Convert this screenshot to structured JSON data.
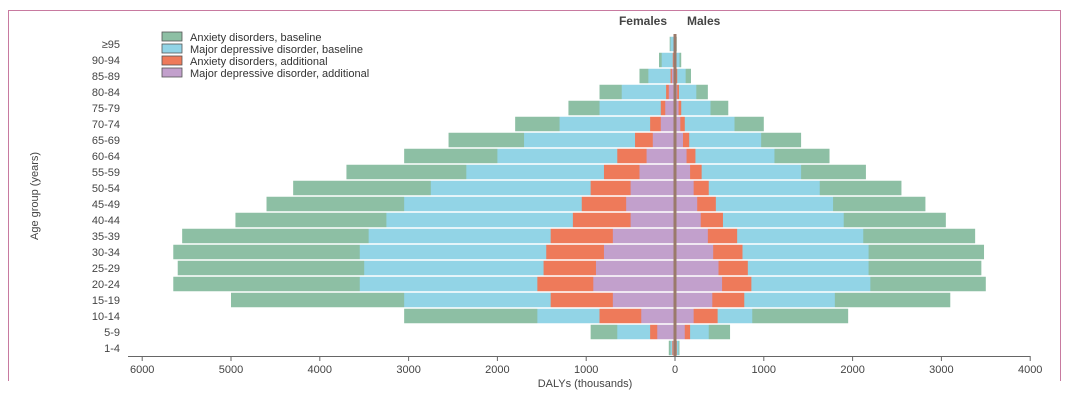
{
  "chart_data": {
    "type": "bar",
    "orientation": "horizontal-population-pyramid",
    "left_label": "Females",
    "right_label": "Males",
    "xlabel": "DALYs (thousands)",
    "ylabel": "Age group (years)",
    "xlim": [
      -6000,
      4000
    ],
    "xticks": [
      -6000,
      -5000,
      -4000,
      -3000,
      -2000,
      -1000,
      0,
      1000,
      2000,
      3000,
      4000
    ],
    "xtick_labels": [
      "6000",
      "5000",
      "4000",
      "3000",
      "2000",
      "1000",
      "0",
      "1000",
      "2000",
      "3000",
      "4000"
    ],
    "categories": [
      "1-4",
      "5-9",
      "10-14",
      "15-19",
      "20-24",
      "25-29",
      "30-34",
      "35-39",
      "40-44",
      "45-49",
      "50-54",
      "55-59",
      "60-64",
      "65-69",
      "70-74",
      "75-79",
      "80-84",
      "85-89",
      "90-94",
      "≥95"
    ],
    "legend_position": "top-left",
    "series": [
      {
        "name": "Anxiety disorders, baseline",
        "color": "#8dbfa4",
        "female_outer": [
          70,
          950,
          3050,
          5000,
          5650,
          5600,
          5650,
          5550,
          4950,
          4600,
          4300,
          3700,
          3050,
          2550,
          1800,
          1200,
          850,
          400,
          180,
          60
        ],
        "male_outer": [
          50,
          620,
          1950,
          3100,
          3500,
          3450,
          3480,
          3380,
          3050,
          2820,
          2550,
          2150,
          1740,
          1420,
          1000,
          600,
          370,
          180,
          70,
          20
        ]
      },
      {
        "name": "Major depressive disorder, baseline",
        "color": "#92d4e6",
        "female_outer": [
          50,
          650,
          1550,
          3050,
          3550,
          3500,
          3550,
          3450,
          3250,
          3050,
          2750,
          2350,
          2000,
          1700,
          1300,
          850,
          600,
          300,
          150,
          50
        ],
        "male_outer": [
          40,
          380,
          870,
          1800,
          2200,
          2180,
          2180,
          2120,
          1900,
          1780,
          1630,
          1420,
          1120,
          970,
          670,
          400,
          240,
          120,
          50,
          15
        ]
      },
      {
        "name": "Anxiety disorders, additional",
        "color": "#ee7a5a",
        "female_outer": [
          30,
          280,
          850,
          1400,
          1550,
          1480,
          1450,
          1400,
          1150,
          1050,
          950,
          800,
          650,
          450,
          280,
          160,
          100,
          50,
          25,
          10
        ],
        "male_outer": [
          20,
          170,
          480,
          780,
          860,
          820,
          760,
          700,
          540,
          460,
          380,
          300,
          230,
          160,
          110,
          70,
          45,
          25,
          12,
          5
        ]
      },
      {
        "name": "Major depressive disorder, additional",
        "color": "#c2a0cc",
        "female_outer": [
          20,
          200,
          380,
          700,
          920,
          890,
          800,
          700,
          500,
          550,
          500,
          400,
          320,
          250,
          160,
          110,
          70,
          35,
          18,
          8
        ],
        "male_outer": [
          15,
          110,
          210,
          420,
          530,
          490,
          430,
          370,
          290,
          250,
          210,
          170,
          130,
          90,
          60,
          40,
          25,
          15,
          8,
          3
        ]
      }
    ]
  }
}
